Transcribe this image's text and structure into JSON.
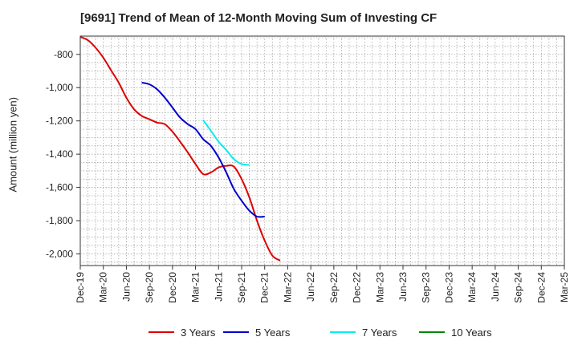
{
  "chart_data": {
    "type": "line",
    "title": "[9691]  Trend of Mean of 12-Month Moving Sum of Investing CF",
    "xlabel": "",
    "ylabel": "Amount (million yen)",
    "ylim": [
      -2070,
      -690
    ],
    "yticks": [
      -800,
      -1000,
      -1200,
      -1400,
      -1600,
      -1800,
      -2000
    ],
    "ytick_labels": [
      "-800",
      "-1,000",
      "-1,200",
      "-1,400",
      "-1,600",
      "-1,800",
      "-2,000"
    ],
    "xtick_labels": [
      "Dec-19",
      "Mar-20",
      "Jun-20",
      "Sep-20",
      "Dec-20",
      "Mar-21",
      "Jun-21",
      "Sep-21",
      "Dec-21",
      "Mar-22",
      "Jun-22",
      "Sep-22",
      "Dec-22",
      "Mar-23",
      "Jun-23",
      "Sep-23",
      "Dec-23",
      "Mar-24",
      "Jun-24",
      "Sep-24",
      "Dec-24",
      "Mar-25"
    ],
    "grid": true,
    "legend_position": "bottom",
    "series": [
      {
        "name": "3 Years",
        "color": "#dd0000",
        "start_index": 0,
        "values": [
          -695,
          -715,
          -760,
          -820,
          -895,
          -970,
          -1060,
          -1130,
          -1170,
          -1190,
          -1210,
          -1220,
          -1265,
          -1325,
          -1390,
          -1460,
          -1520,
          -1510,
          -1480,
          -1470,
          -1475,
          -1550,
          -1660,
          -1800,
          -1920,
          -2010,
          -2040
        ]
      },
      {
        "name": "5 Years",
        "color": "#0000cc",
        "start_index": 8,
        "values": [
          -970,
          -980,
          -1010,
          -1060,
          -1120,
          -1180,
          -1220,
          -1250,
          -1310,
          -1350,
          -1420,
          -1510,
          -1610,
          -1680,
          -1740,
          -1775,
          -1775
        ]
      },
      {
        "name": "7 Years",
        "color": "#00eeee",
        "start_index": 16,
        "values": [
          -1195,
          -1260,
          -1325,
          -1375,
          -1430,
          -1460,
          -1465
        ]
      },
      {
        "name": "10 Years",
        "color": "#008800",
        "start_index": 0,
        "values": []
      }
    ]
  }
}
